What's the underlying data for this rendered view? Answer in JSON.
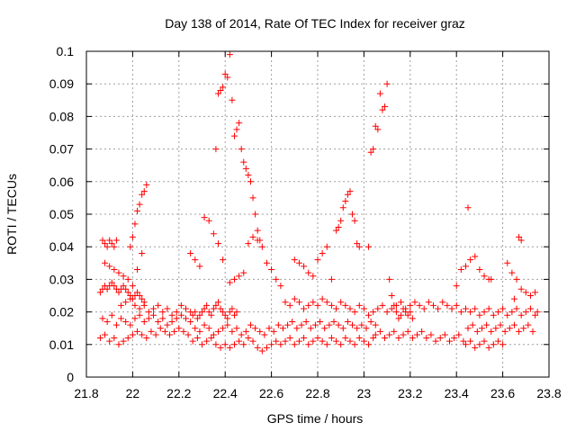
{
  "chart_data": {
    "type": "scatter",
    "title": "Day 138 of 2014, Rate Of TEC Index for receiver graz",
    "xlabel": "GPS time / hours",
    "ylabel": "ROTI / TECUs",
    "xlim": [
      21.8,
      23.8
    ],
    "ylim": [
      0,
      0.1
    ],
    "grid": true,
    "marker": "+",
    "color": "#ff0000",
    "xticks": [
      {
        "value": 21.8,
        "label": "21.8"
      },
      {
        "value": 22.0,
        "label": "22"
      },
      {
        "value": 22.2,
        "label": "22.2"
      },
      {
        "value": 22.4,
        "label": "22.4"
      },
      {
        "value": 22.6,
        "label": "22.6"
      },
      {
        "value": 22.8,
        "label": "22.8"
      },
      {
        "value": 23.0,
        "label": "23"
      },
      {
        "value": 23.2,
        "label": "23.2"
      },
      {
        "value": 23.4,
        "label": "23.4"
      },
      {
        "value": 23.6,
        "label": "23.6"
      },
      {
        "value": 23.8,
        "label": "23.8"
      }
    ],
    "yticks": [
      {
        "value": 0,
        "label": "0"
      },
      {
        "value": 0.01,
        "label": "0.01"
      },
      {
        "value": 0.02,
        "label": "0.02"
      },
      {
        "value": 0.03,
        "label": "0.03"
      },
      {
        "value": 0.04,
        "label": "0.04"
      },
      {
        "value": 0.05,
        "label": "0.05"
      },
      {
        "value": 0.06,
        "label": "0.06"
      },
      {
        "value": 0.07,
        "label": "0.07"
      },
      {
        "value": 0.08,
        "label": "0.08"
      },
      {
        "value": 0.09,
        "label": "0.09"
      },
      {
        "value": 0.1,
        "label": "0.1"
      }
    ],
    "series": [
      {
        "name": "ROTI",
        "x": [
          21.86,
          21.87,
          21.88,
          21.89,
          21.9,
          21.91,
          21.92,
          21.93,
          21.94,
          21.95,
          21.96,
          21.97,
          21.98,
          21.99,
          22.0,
          22.01,
          22.02,
          22.03,
          22.04,
          22.05,
          21.87,
          21.89,
          21.91,
          21.93,
          21.95,
          21.97,
          21.99,
          22.01,
          22.03,
          22.05,
          22.07,
          22.09,
          22.11,
          22.13,
          22.15,
          22.17,
          22.19,
          22.21,
          22.23,
          22.25,
          21.86,
          21.88,
          21.9,
          21.92,
          21.94,
          21.96,
          21.98,
          22.0,
          22.02,
          22.04,
          22.06,
          22.08,
          22.1,
          22.12,
          22.14,
          22.16,
          22.18,
          22.2,
          22.22,
          22.24,
          21.87,
          21.88,
          21.89,
          21.9,
          21.91,
          21.92,
          21.93,
          21.88,
          21.9,
          21.92,
          21.94,
          21.96,
          21.98,
          22.0,
          22.02,
          22.04,
          21.99,
          22.0,
          22.01,
          22.02,
          22.03,
          22.04,
          22.05,
          22.06,
          21.95,
          21.97,
          21.99,
          22.01,
          22.03,
          22.05,
          22.07,
          22.09,
          22.11,
          22.13,
          22.15,
          22.17,
          22.19,
          22.21,
          22.23,
          22.25,
          22.26,
          22.27,
          22.28,
          22.29,
          22.3,
          22.31,
          22.32,
          22.33,
          22.34,
          22.35,
          22.36,
          22.37,
          22.38,
          22.39,
          22.4,
          22.41,
          22.42,
          22.43,
          22.44,
          22.45,
          22.27,
          22.29,
          22.31,
          22.33,
          22.35,
          22.37,
          22.39,
          22.41,
          22.43,
          22.45,
          22.47,
          22.49,
          22.51,
          22.53,
          22.55,
          22.57,
          22.59,
          22.61,
          22.63,
          22.65,
          22.26,
          22.28,
          22.3,
          22.32,
          22.34,
          22.36,
          22.38,
          22.4,
          22.42,
          22.44,
          22.46,
          22.48,
          22.5,
          22.52,
          22.54,
          22.56,
          22.58,
          22.6,
          22.62,
          22.64,
          22.36,
          22.37,
          22.38,
          22.39,
          22.4,
          22.41,
          22.42,
          22.43,
          22.44,
          22.45,
          22.46,
          22.47,
          22.48,
          22.49,
          22.5,
          22.51,
          22.52,
          22.53,
          22.54,
          22.55,
          22.25,
          22.27,
          22.29,
          22.31,
          22.33,
          22.35,
          22.37,
          22.39,
          22.42,
          22.44,
          22.46,
          22.48,
          22.5,
          22.52,
          22.54,
          22.56,
          22.58,
          22.6,
          22.62,
          22.64,
          22.66,
          22.68,
          22.7,
          22.72,
          22.74,
          22.76,
          22.78,
          22.8,
          22.82,
          22.84,
          22.86,
          22.88,
          22.9,
          22.92,
          22.94,
          22.96,
          22.98,
          23.0,
          23.02,
          23.04,
          22.67,
          22.69,
          22.71,
          22.73,
          22.75,
          22.77,
          22.79,
          22.81,
          22.83,
          22.85,
          22.87,
          22.89,
          22.91,
          22.93,
          22.95,
          22.97,
          22.99,
          23.01,
          23.03,
          23.05,
          22.66,
          22.68,
          22.7,
          22.72,
          22.74,
          22.76,
          22.78,
          22.8,
          22.82,
          22.84,
          22.86,
          22.88,
          22.9,
          22.92,
          22.94,
          22.96,
          22.98,
          23.0,
          23.02,
          23.04,
          22.7,
          22.72,
          22.74,
          22.76,
          22.78,
          22.8,
          22.82,
          22.84,
          22.86,
          22.88,
          22.89,
          22.9,
          22.91,
          22.92,
          22.93,
          22.94,
          22.95,
          22.96,
          22.97,
          22.98,
          23.02,
          23.03,
          23.04,
          23.05,
          23.06,
          23.07,
          23.08,
          23.09,
          23.1,
          23.11,
          23.12,
          23.13,
          23.14,
          23.15,
          23.16,
          23.17,
          23.18,
          23.19,
          23.2,
          23.21,
          23.06,
          23.08,
          23.1,
          23.12,
          23.14,
          23.16,
          23.18,
          23.2,
          23.22,
          23.24,
          23.26,
          23.28,
          23.3,
          23.32,
          23.34,
          23.36,
          23.38,
          23.4,
          23.42,
          23.44,
          23.05,
          23.07,
          23.09,
          23.11,
          23.13,
          23.15,
          23.17,
          23.19,
          23.21,
          23.23,
          23.25,
          23.27,
          23.29,
          23.31,
          23.33,
          23.35,
          23.37,
          23.39,
          23.41,
          23.43,
          23.46,
          23.48,
          23.5,
          23.52,
          23.54,
          23.56,
          23.58,
          23.6,
          23.62,
          23.64,
          23.66,
          23.68,
          23.7,
          23.72,
          23.74,
          23.75,
          23.45,
          23.47,
          23.49,
          23.51,
          23.53,
          23.55,
          23.57,
          23.59,
          23.61,
          23.63,
          23.65,
          23.67,
          23.69,
          23.71,
          23.73,
          23.44,
          23.46,
          23.48,
          23.5,
          23.52,
          23.54,
          23.56,
          23.58,
          23.6,
          23.4,
          23.42,
          23.44,
          23.46,
          23.48,
          23.5,
          23.52,
          23.54,
          23.62,
          23.64,
          23.66,
          23.68,
          23.7,
          23.72,
          23.74,
          23.67,
          23.68,
          23.45,
          23.55,
          23.65
        ],
        "y": [
          0.026,
          0.027,
          0.028,
          0.027,
          0.028,
          0.029,
          0.028,
          0.027,
          0.026,
          0.027,
          0.028,
          0.027,
          0.026,
          0.025,
          0.024,
          0.025,
          0.026,
          0.025,
          0.024,
          0.023,
          0.018,
          0.017,
          0.019,
          0.016,
          0.018,
          0.017,
          0.016,
          0.018,
          0.019,
          0.017,
          0.018,
          0.019,
          0.017,
          0.018,
          0.016,
          0.017,
          0.018,
          0.019,
          0.018,
          0.017,
          0.012,
          0.013,
          0.011,
          0.012,
          0.01,
          0.011,
          0.012,
          0.013,
          0.014,
          0.013,
          0.012,
          0.014,
          0.013,
          0.015,
          0.014,
          0.013,
          0.014,
          0.015,
          0.014,
          0.013,
          0.042,
          0.041,
          0.04,
          0.042,
          0.041,
          0.04,
          0.042,
          0.035,
          0.034,
          0.033,
          0.032,
          0.031,
          0.03,
          0.028,
          0.033,
          0.038,
          0.04,
          0.043,
          0.047,
          0.051,
          0.053,
          0.056,
          0.057,
          0.059,
          0.022,
          0.023,
          0.024,
          0.022,
          0.021,
          0.022,
          0.02,
          0.021,
          0.022,
          0.02,
          0.021,
          0.019,
          0.02,
          0.022,
          0.021,
          0.02,
          0.019,
          0.02,
          0.018,
          0.019,
          0.02,
          0.021,
          0.022,
          0.02,
          0.019,
          0.021,
          0.022,
          0.023,
          0.021,
          0.02,
          0.019,
          0.018,
          0.02,
          0.021,
          0.019,
          0.02,
          0.015,
          0.014,
          0.016,
          0.015,
          0.013,
          0.014,
          0.015,
          0.016,
          0.014,
          0.015,
          0.013,
          0.014,
          0.016,
          0.015,
          0.014,
          0.013,
          0.015,
          0.014,
          0.016,
          0.015,
          0.011,
          0.012,
          0.01,
          0.011,
          0.012,
          0.01,
          0.009,
          0.01,
          0.009,
          0.01,
          0.011,
          0.01,
          0.012,
          0.011,
          0.009,
          0.008,
          0.009,
          0.01,
          0.011,
          0.01,
          0.07,
          0.087,
          0.088,
          0.089,
          0.093,
          0.092,
          0.099,
          0.085,
          0.074,
          0.076,
          0.078,
          0.07,
          0.066,
          0.064,
          0.062,
          0.06,
          0.055,
          0.05,
          0.045,
          0.042,
          0.038,
          0.036,
          0.034,
          0.049,
          0.048,
          0.044,
          0.041,
          0.036,
          0.029,
          0.03,
          0.031,
          0.032,
          0.041,
          0.043,
          0.042,
          0.04,
          0.035,
          0.033,
          0.03,
          0.028,
          0.023,
          0.022,
          0.024,
          0.023,
          0.021,
          0.022,
          0.023,
          0.022,
          0.024,
          0.023,
          0.022,
          0.021,
          0.023,
          0.022,
          0.021,
          0.02,
          0.022,
          0.021,
          0.019,
          0.02,
          0.016,
          0.017,
          0.015,
          0.016,
          0.017,
          0.015,
          0.016,
          0.017,
          0.015,
          0.016,
          0.017,
          0.016,
          0.015,
          0.017,
          0.016,
          0.015,
          0.016,
          0.015,
          0.017,
          0.016,
          0.011,
          0.012,
          0.01,
          0.011,
          0.012,
          0.01,
          0.011,
          0.012,
          0.011,
          0.01,
          0.012,
          0.011,
          0.01,
          0.012,
          0.011,
          0.01,
          0.012,
          0.011,
          0.01,
          0.012,
          0.036,
          0.035,
          0.034,
          0.032,
          0.031,
          0.036,
          0.038,
          0.04,
          0.03,
          0.045,
          0.046,
          0.048,
          0.052,
          0.054,
          0.056,
          0.057,
          0.05,
          0.048,
          0.041,
          0.04,
          0.04,
          0.069,
          0.07,
          0.077,
          0.076,
          0.087,
          0.082,
          0.083,
          0.09,
          0.03,
          0.025,
          0.022,
          0.02,
          0.018,
          0.019,
          0.021,
          0.02,
          0.019,
          0.02,
          0.018,
          0.021,
          0.022,
          0.02,
          0.021,
          0.022,
          0.023,
          0.021,
          0.022,
          0.023,
          0.022,
          0.021,
          0.023,
          0.022,
          0.021,
          0.023,
          0.022,
          0.021,
          0.022,
          0.02,
          0.021,
          0.013,
          0.014,
          0.012,
          0.013,
          0.014,
          0.012,
          0.013,
          0.014,
          0.012,
          0.013,
          0.014,
          0.012,
          0.013,
          0.011,
          0.012,
          0.013,
          0.011,
          0.012,
          0.013,
          0.011,
          0.02,
          0.021,
          0.019,
          0.02,
          0.021,
          0.019,
          0.02,
          0.021,
          0.019,
          0.02,
          0.021,
          0.019,
          0.02,
          0.021,
          0.019,
          0.02,
          0.015,
          0.016,
          0.014,
          0.015,
          0.016,
          0.014,
          0.015,
          0.016,
          0.014,
          0.015,
          0.016,
          0.014,
          0.015,
          0.016,
          0.014,
          0.01,
          0.011,
          0.009,
          0.01,
          0.011,
          0.009,
          0.01,
          0.011,
          0.01,
          0.028,
          0.033,
          0.034,
          0.036,
          0.037,
          0.033,
          0.031,
          0.03,
          0.035,
          0.032,
          0.03,
          0.027,
          0.026,
          0.025,
          0.026,
          0.043,
          0.042,
          0.052,
          0.03,
          0.024
        ]
      }
    ]
  }
}
